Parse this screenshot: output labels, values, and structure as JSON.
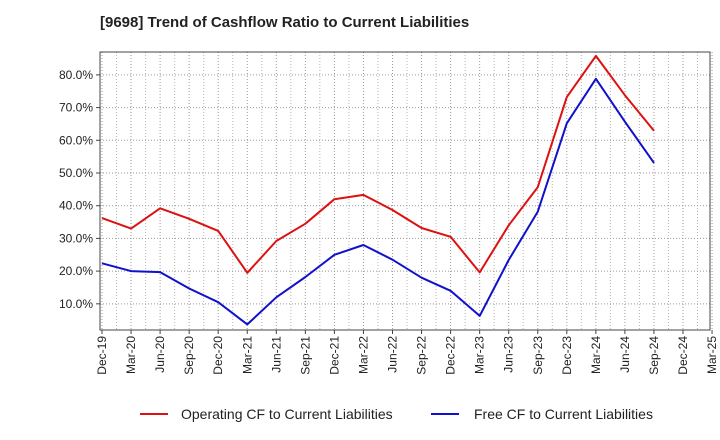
{
  "title": "[9698]  Trend of Cashflow Ratio to Current Liabilities",
  "chart_data": {
    "type": "line",
    "title": "[9698]  Trend of Cashflow Ratio to Current Liabilities",
    "xlabel": "",
    "ylabel": "",
    "categories": [
      "Dec-19",
      "Mar-20",
      "Jun-20",
      "Sep-20",
      "Dec-20",
      "Mar-21",
      "Jun-21",
      "Sep-21",
      "Dec-21",
      "Mar-22",
      "Jun-22",
      "Sep-22",
      "Dec-22",
      "Mar-23",
      "Jun-23",
      "Sep-23",
      "Dec-23",
      "Mar-24",
      "Jun-24",
      "Sep-24",
      "Dec-24",
      "Mar-25"
    ],
    "y_ticks": [
      "10.0%",
      "20.0%",
      "30.0%",
      "40.0%",
      "50.0%",
      "60.0%",
      "70.0%",
      "80.0%"
    ],
    "y_tick_values": [
      10,
      20,
      30,
      40,
      50,
      60,
      70,
      80
    ],
    "ylim": [
      2,
      87
    ],
    "grid": true,
    "legend_position": "bottom",
    "series": [
      {
        "name": "Operating CF to Current Liabilities",
        "color": "#dd1111",
        "values": [
          36.2,
          33.0,
          39.2,
          36.0,
          32.3,
          19.5,
          29.2,
          34.5,
          42.0,
          43.3,
          38.7,
          33.2,
          30.5,
          19.6,
          34.0,
          45.7,
          73.2,
          85.8,
          73.8,
          62.9,
          null,
          null
        ]
      },
      {
        "name": "Free CF to Current Liabilities",
        "color": "#1111cc",
        "values": [
          22.4,
          20.0,
          19.7,
          14.7,
          10.5,
          3.7,
          12.0,
          18.2,
          25.0,
          28.0,
          23.5,
          18.0,
          14.0,
          6.3,
          23.4,
          38.2,
          65.2,
          78.8,
          65.7,
          53.1,
          null,
          null
        ]
      }
    ]
  }
}
